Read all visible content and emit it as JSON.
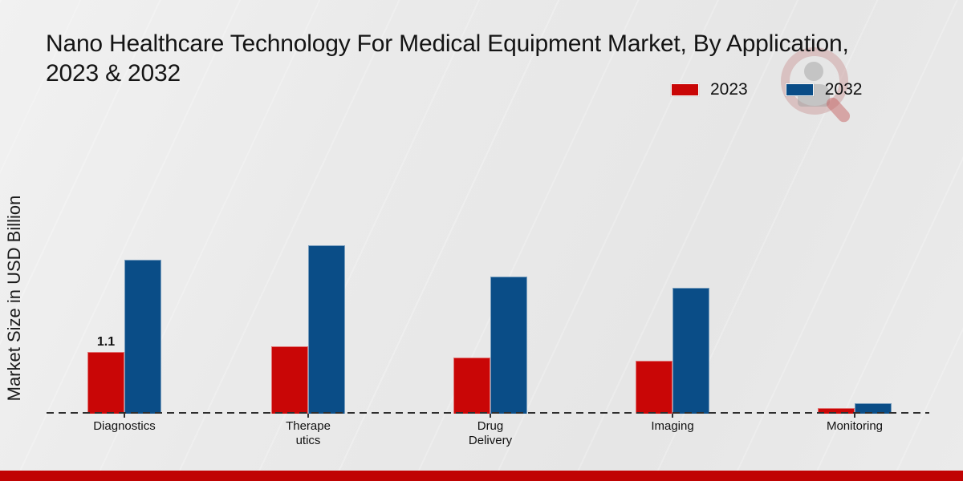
{
  "chart_data": {
    "type": "bar",
    "title": "Nano Healthcare Technology For Medical Equipment Market, By Application, 2023 & 2032",
    "title_lines": [
      "Nano Healthcare Technology For Medical Equipment Market, By Application,",
      "2023 & 2032"
    ],
    "xlabel": "",
    "ylabel": "Market Size in USD Billion",
    "ylim": [
      0,
      3.5
    ],
    "grid": false,
    "legend_position": "top-right",
    "baseline_style": "dashed",
    "categories": [
      "Diagnostics",
      "Therapeutics",
      "Drug Delivery",
      "Imaging",
      "Monitoring"
    ],
    "category_label_lines": [
      [
        "Diagnostics"
      ],
      [
        "Therape",
        "utics"
      ],
      [
        "Drug",
        "Delivery"
      ],
      [
        "Imaging"
      ],
      [
        "Monitoring"
      ]
    ],
    "series": [
      {
        "name": "2023",
        "color": "#c90606",
        "values": [
          1.1,
          1.2,
          1.0,
          0.95,
          0.1
        ]
      },
      {
        "name": "2032",
        "color": "#0a4d87",
        "values": [
          2.75,
          3.0,
          2.45,
          2.25,
          0.18
        ]
      }
    ],
    "bar_labels": [
      {
        "category_index": 0,
        "series_index": 0,
        "text": "1.1"
      }
    ]
  },
  "watermark": {
    "name": "market-research-logo"
  },
  "footer": {
    "band_color": "#c00303"
  }
}
